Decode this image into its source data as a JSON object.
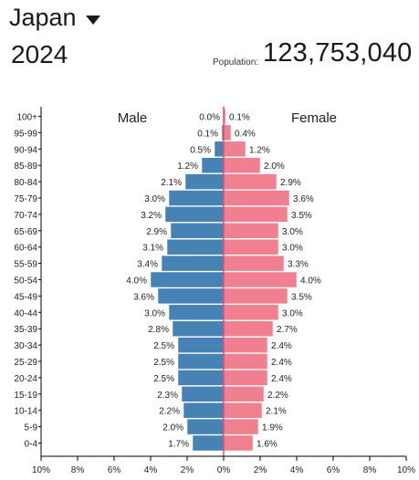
{
  "header": {
    "country": "Japan",
    "year": "2024",
    "population_label": "Population:",
    "population_value": "123,753,040"
  },
  "colors": {
    "male": "#4682b4",
    "female": "#f08090",
    "axis": "#000000",
    "divider": "#e05070"
  },
  "chart_data": {
    "type": "bar",
    "orientation": "horizontal-pyramid",
    "left_title": "Male",
    "right_title": "Female",
    "categories": [
      "0-4",
      "5-9",
      "10-14",
      "15-19",
      "20-24",
      "25-29",
      "30-34",
      "35-39",
      "40-44",
      "45-49",
      "50-54",
      "55-59",
      "60-64",
      "65-69",
      "70-74",
      "75-79",
      "80-84",
      "85-89",
      "90-94",
      "95-99",
      "100+"
    ],
    "series": [
      {
        "name": "Male",
        "values": [
          1.7,
          2.0,
          2.2,
          2.3,
          2.5,
          2.5,
          2.5,
          2.8,
          3.0,
          3.6,
          4.0,
          3.4,
          3.1,
          2.9,
          3.2,
          3.0,
          2.1,
          1.2,
          0.5,
          0.1,
          0.0
        ]
      },
      {
        "name": "Female",
        "values": [
          1.6,
          1.9,
          2.1,
          2.2,
          2.4,
          2.4,
          2.4,
          2.7,
          3.0,
          3.5,
          4.0,
          3.3,
          3.0,
          3.0,
          3.5,
          3.6,
          2.9,
          2.0,
          1.2,
          0.4,
          0.1
        ]
      }
    ],
    "xlim": [
      -10,
      10
    ],
    "x_ticks": [
      "10%",
      "8%",
      "6%",
      "4%",
      "2%",
      "0%",
      "2%",
      "4%",
      "6%",
      "8%",
      "10%"
    ],
    "grid": false
  }
}
